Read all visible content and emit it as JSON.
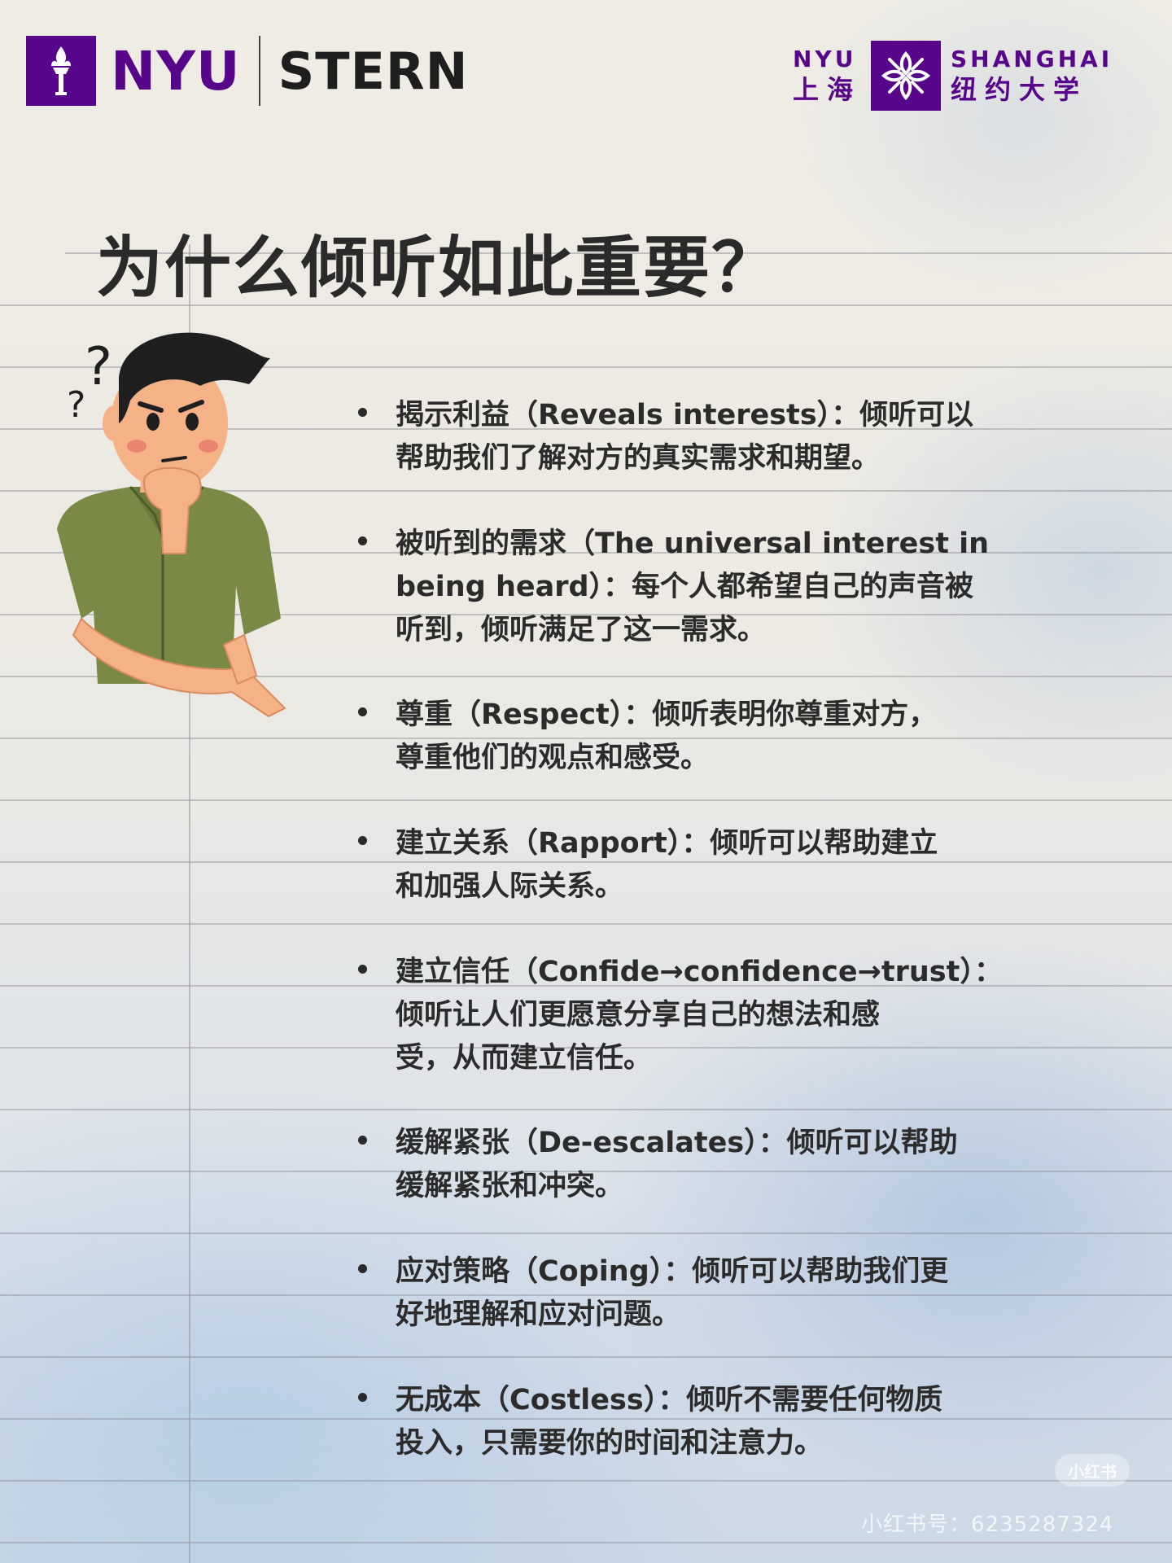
{
  "header": {
    "nyu_text": "NYU",
    "stern_text": "STERN",
    "shanghai_nyu": "NYU",
    "shanghai_cn_left": "上海",
    "shanghai_en": "SHANGHAI",
    "shanghai_cn_right": "纽约大学",
    "brand_color": "#57068c"
  },
  "title": "为什么倾听如此重要？",
  "illustration": {
    "question_marks": [
      "?",
      "?"
    ],
    "icon": "thinking-man-icon"
  },
  "points": [
    {
      "line1": "揭示利益（Reveals interests）：倾听可以",
      "line2": "帮助我们了解对方的真实需求和期望。"
    },
    {
      "line1": "被听到的需求（The universal interest in",
      "line2": "being heard）：每个人都希望自己的声音被",
      "line3": "听到，倾听满足了这一需求。"
    },
    {
      "line1": "尊重（Respect）：倾听表明你尊重对方，",
      "line2": "尊重他们的观点和感受。"
    },
    {
      "line1": "建立关系（Rapport）：倾听可以帮助建立",
      "line2": "和加强人际关系。"
    },
    {
      "line1": "建立信任（Confide→confidence→trust）：",
      "line2": "倾听让人们更愿意分享自己的想法和感",
      "line3": "受，从而建立信任。"
    },
    {
      "line1": "缓解紧张（De-escalates）：倾听可以帮助",
      "line2": "缓解紧张和冲突。"
    },
    {
      "line1": "应对策略（Coping）：倾听可以帮助我们更",
      "line2": "好地理解和应对问题。"
    },
    {
      "line1": "无成本（Costless）：倾听不需要任何物质",
      "line2": "投入，只需要你的时间和注意力。"
    }
  ],
  "watermark": {
    "badge": "小红书",
    "id_text": "小红书号：6235287324"
  }
}
